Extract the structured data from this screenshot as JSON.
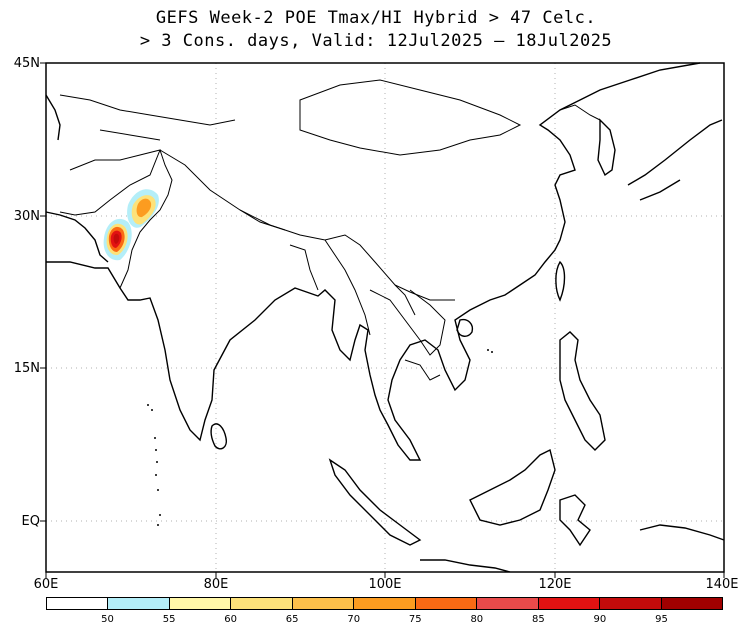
{
  "title": {
    "line1": "GEFS Week-2 POE Tmax/HI Hybrid > 47 Celc.",
    "line2": "> 3 Cons. days, Valid: 12Jul2025 – 18Jul2025"
  },
  "axes": {
    "lat_labels": [
      "45N",
      "30N",
      "15N",
      "EQ"
    ],
    "lon_labels": [
      "60E",
      "80E",
      "100E",
      "120E",
      "140E"
    ]
  },
  "colorbar": {
    "colors": [
      "#ffffff",
      "#b4eef8",
      "#fff7a8",
      "#fde27a",
      "#fdc04a",
      "#fc9c20",
      "#fa6a14",
      "#e94a4a",
      "#e21212",
      "#c40b0b",
      "#a00000"
    ],
    "labels": [
      "50",
      "55",
      "60",
      "65",
      "70",
      "75",
      "80",
      "85",
      "90",
      "95"
    ]
  },
  "map": {
    "region": "South and East Asia",
    "gridlines": "dotted"
  }
}
